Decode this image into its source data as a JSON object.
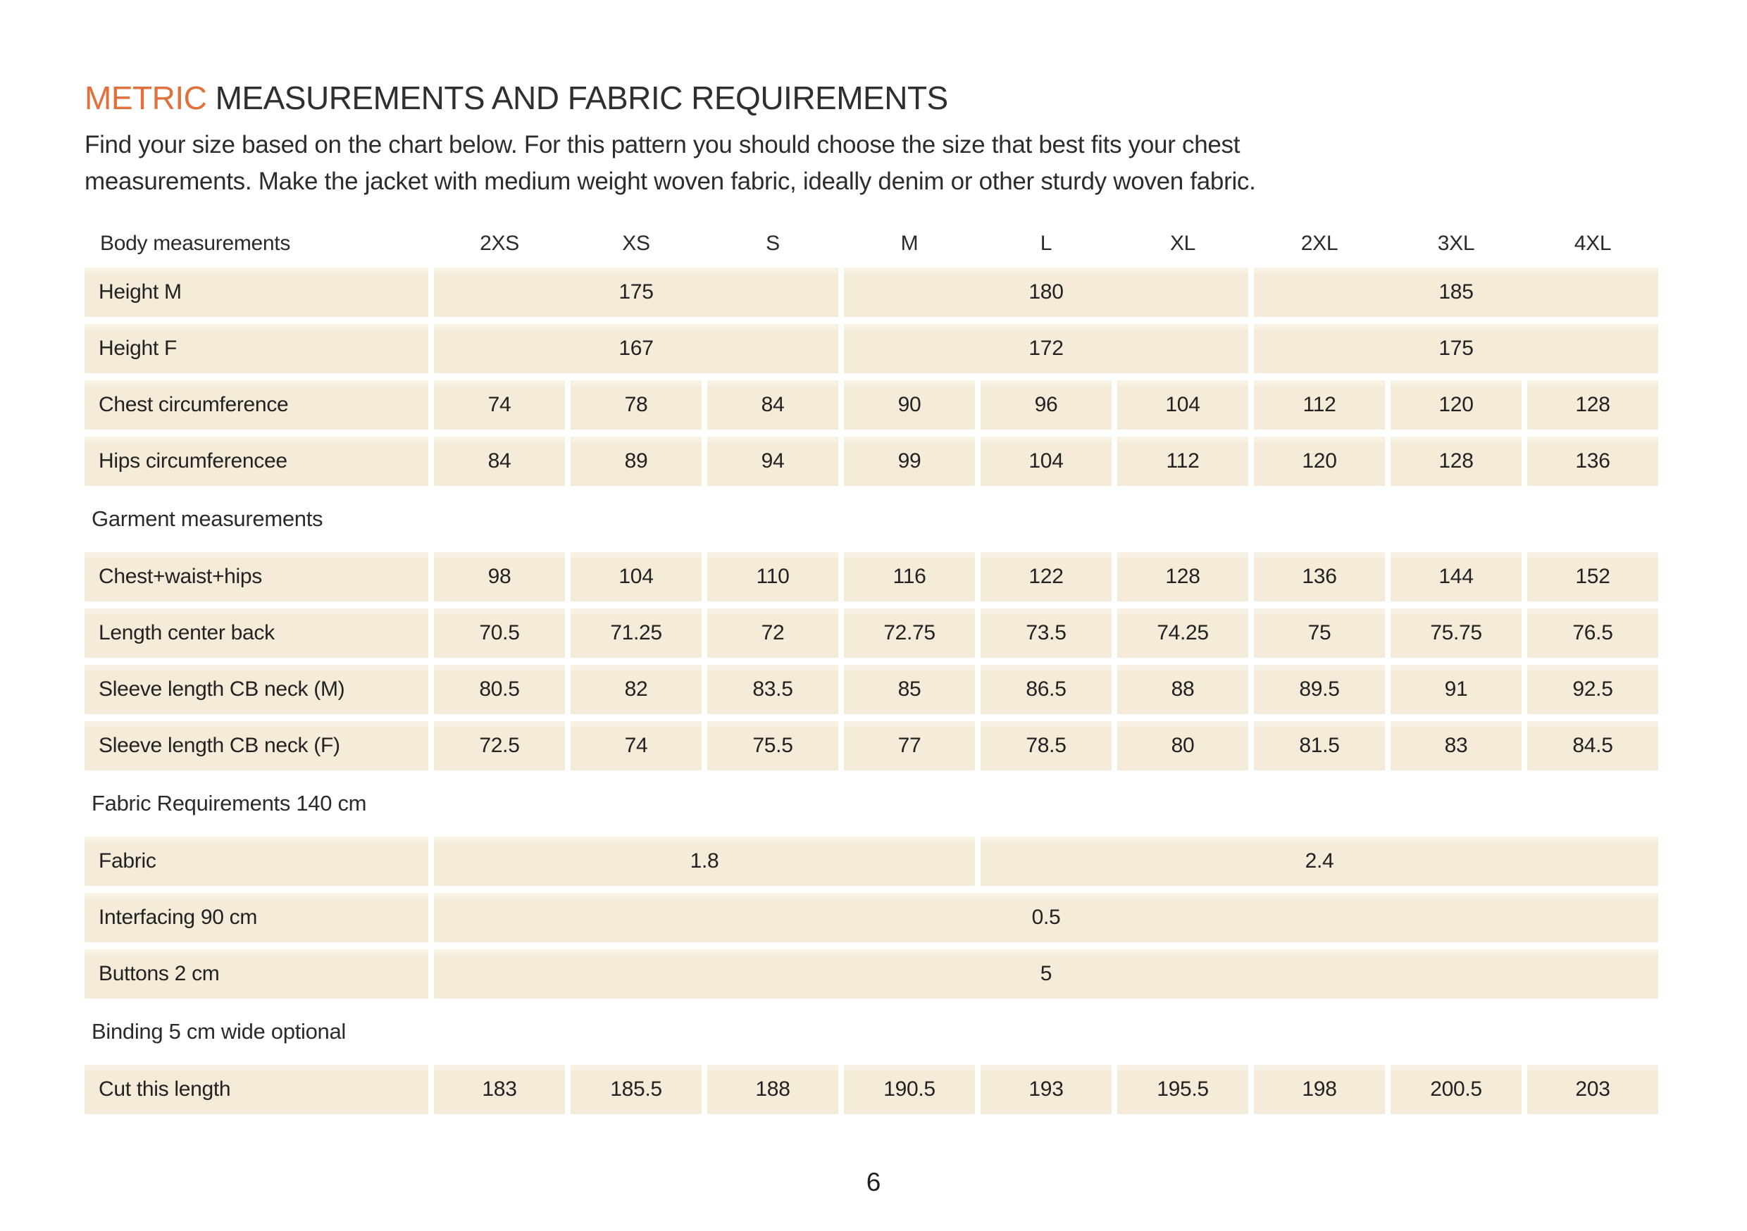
{
  "page": {
    "title_accent": "METRIC",
    "title_rest": " MEASUREMENTS AND FABRIC REQUIREMENTS",
    "subtitle_line1": "Find your size based on the chart below. For this pattern you should choose the size that best fits your chest",
    "subtitle_line2": "measurements. Make the jacket with medium weight woven fabric, ideally denim or other sturdy woven fabric.",
    "page_number": "6"
  },
  "colors": {
    "accent_orange": "#e0703c",
    "cell_background": "#f4ebd8",
    "text": "#2e2e2e"
  },
  "table": {
    "header": {
      "label": "Body measurements",
      "sizes": [
        "2XS",
        "XS",
        "S",
        "M",
        "L",
        "XL",
        "2XL",
        "3XL",
        "4XL"
      ]
    },
    "rows": {
      "height_m": {
        "label": "Height M",
        "values": [
          "175",
          "180",
          "185"
        ]
      },
      "height_f": {
        "label": "Height F",
        "values": [
          "167",
          "172",
          "175"
        ]
      },
      "chest": {
        "label": "Chest circumference",
        "values": [
          "74",
          "78",
          "84",
          "90",
          "96",
          "104",
          "112",
          "120",
          "128"
        ]
      },
      "hips": {
        "label": "Hips circumferencee",
        "values": [
          "84",
          "89",
          "94",
          "99",
          "104",
          "112",
          "120",
          "128",
          "136"
        ]
      },
      "garment_section": "Garment measurements",
      "cwh": {
        "label": "Chest+waist+hips",
        "values": [
          "98",
          "104",
          "110",
          "116",
          "122",
          "128",
          "136",
          "144",
          "152"
        ]
      },
      "length_cb": {
        "label": "Length center back",
        "values": [
          "70.5",
          "71.25",
          "72",
          "72.75",
          "73.5",
          "74.25",
          "75",
          "75.75",
          "76.5"
        ]
      },
      "sleeve_m": {
        "label": "Sleeve length CB neck (M)",
        "values": [
          "80.5",
          "82",
          "83.5",
          "85",
          "86.5",
          "88",
          "89.5",
          "91",
          "92.5"
        ]
      },
      "sleeve_f": {
        "label": "Sleeve length CB neck (F)",
        "values": [
          "72.5",
          "74",
          "75.5",
          "77",
          "78.5",
          "80",
          "81.5",
          "83",
          "84.5"
        ]
      },
      "fabric_section": "Fabric Requirements 140 cm",
      "fabric": {
        "label": "Fabric",
        "values": [
          "1.8",
          "2.4"
        ]
      },
      "interfacing": {
        "label": "Interfacing 90 cm",
        "values": [
          "0.5"
        ]
      },
      "buttons": {
        "label": "Buttons 2 cm",
        "values": [
          "5"
        ]
      },
      "binding_section": "Binding 5 cm wide optional",
      "cut": {
        "label": "Cut this length",
        "values": [
          "183",
          "185.5",
          "188",
          "190.5",
          "193",
          "195.5",
          "198",
          "200.5",
          "203"
        ]
      }
    }
  }
}
